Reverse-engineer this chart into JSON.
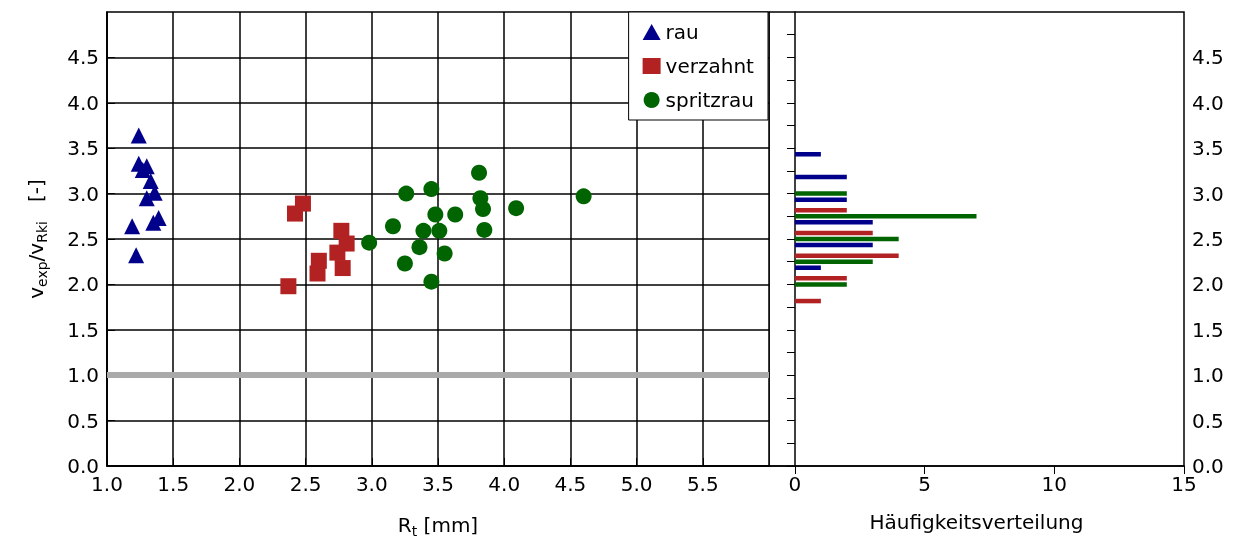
{
  "chart_data": [
    {
      "type": "scatter",
      "xlabel": "R$_{t}$ [mm]",
      "ylabel": "v$_{exp}$/v$_{Rki}$   [-]",
      "xlim": [
        1,
        6
      ],
      "xticks": [
        {
          "value": 1,
          "label": "1.0"
        },
        {
          "value": 1.5,
          "label": "1.5"
        },
        {
          "value": 2,
          "label": "2.0"
        },
        {
          "value": 2.5,
          "label": "2.5"
        },
        {
          "value": 3,
          "label": "3.0"
        },
        {
          "value": 3.5,
          "label": "3.5"
        },
        {
          "value": 4,
          "label": "4.0"
        },
        {
          "value": 4.5,
          "label": "4.5"
        },
        {
          "value": 5,
          "label": "5.0"
        },
        {
          "value": 5.5,
          "label": "5.5"
        }
      ],
      "ylim": [
        0,
        5
      ],
      "yticks": [
        {
          "value": 0,
          "label": "0.0"
        },
        {
          "value": 0.5,
          "label": "0.5"
        },
        {
          "value": 1,
          "label": "1.0"
        },
        {
          "value": 1.5,
          "label": "1.5"
        },
        {
          "value": 2,
          "label": "2.0"
        },
        {
          "value": 2.5,
          "label": "2.5"
        },
        {
          "value": 3,
          "label": "3.0"
        },
        {
          "value": 3.5,
          "label": "3.5"
        },
        {
          "value": 4,
          "label": "4.0"
        },
        {
          "value": 4.5,
          "label": "4.5"
        }
      ],
      "grid": true,
      "legend": "top right",
      "ref_lines": [
        {
          "axis": "y",
          "value": 1,
          "color": "#aaaaaa"
        }
      ],
      "series": [
        {
          "name": "rau",
          "color": "#00008b",
          "marker": "triangle",
          "x": [
            1.24,
            1.24,
            1.3,
            1.27,
            1.33,
            1.36,
            1.3,
            1.39,
            1.35,
            1.19,
            1.22
          ],
          "values": [
            3.64,
            3.33,
            3.3,
            3.26,
            3.14,
            3.01,
            2.95,
            2.73,
            2.68,
            2.64,
            2.32
          ]
        },
        {
          "name": "verzahnt",
          "color": "#b22222",
          "marker": "square",
          "x": [
            2.48,
            2.42,
            2.77,
            2.81,
            2.74,
            2.6,
            2.78,
            2.59,
            2.37
          ],
          "values": [
            2.89,
            2.78,
            2.59,
            2.45,
            2.35,
            2.26,
            2.18,
            2.12,
            1.98
          ]
        },
        {
          "name": "spritzrau",
          "color": "#006400",
          "marker": "circle",
          "x": [
            2.98,
            3.16,
            3.26,
            3.25,
            3.36,
            3.39,
            3.45,
            3.48,
            3.51,
            3.55,
            3.45,
            3.63,
            3.81,
            3.82,
            3.84,
            3.85,
            4.09,
            4.6
          ],
          "values": [
            2.46,
            2.64,
            3.0,
            2.23,
            2.41,
            2.59,
            3.05,
            2.77,
            2.59,
            2.34,
            2.03,
            2.77,
            3.23,
            2.95,
            2.83,
            2.6,
            2.84,
            2.97
          ]
        }
      ]
    },
    {
      "type": "histogram",
      "orientation": "horizontal",
      "xlabel": "Häufigkeitsverteilung",
      "xlim": [
        -1,
        15
      ],
      "xticks": [
        0,
        5,
        10,
        15
      ],
      "ylim": [
        0,
        5
      ],
      "yticks": [
        {
          "value": 0,
          "label": "0.0"
        },
        {
          "value": 0.25,
          "label": null
        },
        {
          "value": 0.5,
          "label": "0.5"
        },
        {
          "value": 0.75,
          "label": null
        },
        {
          "value": 1,
          "label": "1.0"
        },
        {
          "value": 1.25,
          "label": null
        },
        {
          "value": 1.5,
          "label": "1.5"
        },
        {
          "value": 1.75,
          "label": null
        },
        {
          "value": 2,
          "label": "2.0"
        },
        {
          "value": 2.25,
          "label": null
        },
        {
          "value": 2.5,
          "label": "2.5"
        },
        {
          "value": 2.75,
          "label": null
        },
        {
          "value": 3,
          "label": "3.0"
        },
        {
          "value": 3.25,
          "label": null
        },
        {
          "value": 3.5,
          "label": "3.5"
        },
        {
          "value": 3.75,
          "label": null
        },
        {
          "value": 4,
          "label": "4.0"
        },
        {
          "value": 4.25,
          "label": null
        },
        {
          "value": 4.5,
          "label": "4.5"
        },
        {
          "value": 4.75,
          "label": null
        }
      ],
      "bins": [
        1.625,
        1.875,
        2.125,
        2.375,
        2.625,
        2.875,
        3.125,
        3.375,
        3.625
      ],
      "series": [
        {
          "color": "#00008b",
          "values": [
            0,
            0,
            1,
            3,
            3,
            2,
            2,
            1
          ]
        },
        {
          "color": "#006400",
          "values": [
            0,
            2,
            3,
            4,
            7,
            2,
            0,
            0
          ]
        },
        {
          "color": "#b22222",
          "values": [
            1,
            2,
            4,
            3,
            2,
            0,
            0,
            0
          ]
        }
      ]
    }
  ]
}
